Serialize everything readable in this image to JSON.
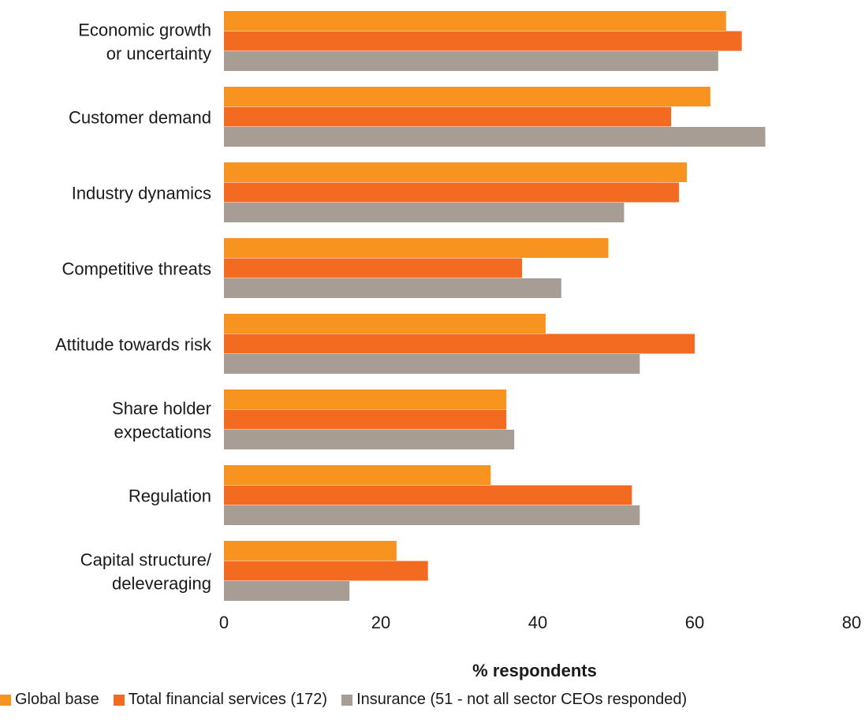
{
  "chart_data": {
    "type": "bar",
    "orientation": "horizontal",
    "title": "",
    "xlabel": "% respondents",
    "ylabel": "",
    "xlim": [
      0,
      80
    ],
    "xticks": [
      "0",
      "20",
      "40",
      "60",
      "80"
    ],
    "grid": false,
    "legend_position": "bottom",
    "categories": [
      [
        "Economic growth",
        "or uncertainty"
      ],
      [
        "Customer demand"
      ],
      [
        "Industry dynamics"
      ],
      [
        "Competitive threats"
      ],
      [
        "Attitude towards risk"
      ],
      [
        "Share holder",
        "expectations"
      ],
      [
        "Regulation"
      ],
      [
        "Capital structure/",
        "deleveraging"
      ]
    ],
    "series": [
      {
        "name": "Global base",
        "color": "#F7931E",
        "values": [
          64,
          62,
          59,
          49,
          41,
          36,
          34,
          22
        ]
      },
      {
        "name": "Total financial services (172)",
        "color": "#F26B21",
        "values": [
          66,
          57,
          58,
          38,
          60,
          36,
          52,
          26
        ]
      },
      {
        "name": "Insurance (51 - not all sector CEOs responded)",
        "color": "#A89D94",
        "values": [
          63,
          69,
          51,
          43,
          53,
          37,
          53,
          16
        ]
      }
    ]
  }
}
